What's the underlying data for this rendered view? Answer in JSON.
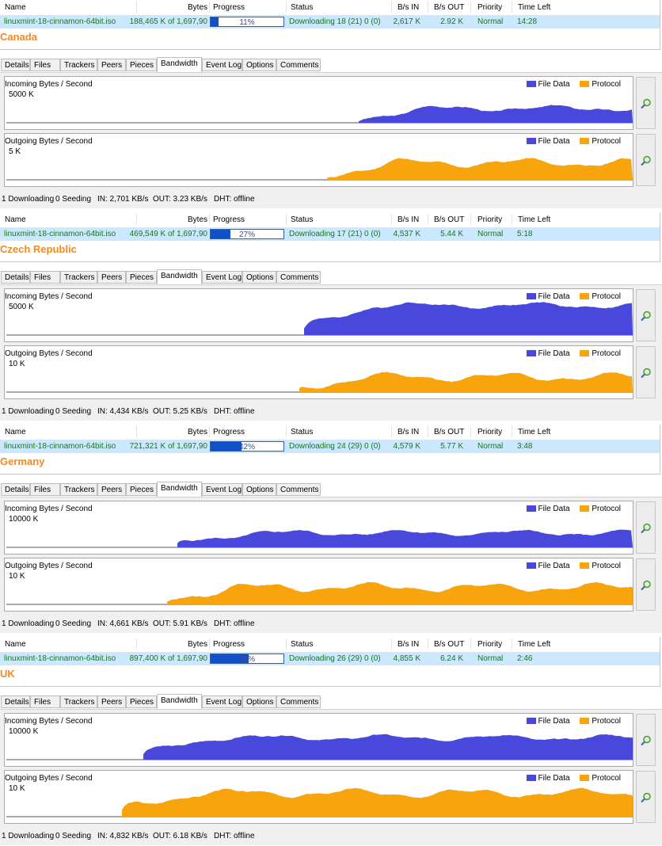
{
  "columns": {
    "name": "Name",
    "bytes": "Bytes",
    "progress": "Progress",
    "status": "Status",
    "bs_in": "B/s IN",
    "bs_out": "B/s OUT",
    "priority": "Priority",
    "time_left": "Time Left"
  },
  "tabs": [
    "Details",
    "Files",
    "Trackers",
    "Peers",
    "Pieces",
    "Bandwidth",
    "Event Log",
    "Options",
    "Comments"
  ],
  "graphs": {
    "incoming_title": "Incoming Bytes / Second",
    "outgoing_title": "Outgoing Bytes / Second",
    "legend_file": "File Data",
    "legend_protocol": "Protocol",
    "file_color": "#4848dc",
    "protocol_color": "#f8a40c"
  },
  "panels": [
    {
      "country": "Canada",
      "torrent": {
        "name": "linuxmint-18-cinnamon-64bit.iso",
        "bytes": "188,465 K of 1,697,90",
        "progress_label": "11%",
        "progress": 0.11,
        "status": "Downloading 18 (21) 0 (0)",
        "bs_in": "2,617 K",
        "bs_out": "2.92 K",
        "priority": "Normal",
        "time_left": "14:28"
      },
      "incoming_scale": "5000 K",
      "outgoing_scale": "5 K",
      "status_bar": {
        "downloading": "1 Downloading",
        "seeding": "0 Seeding",
        "in": "IN: 2,701 KB/s",
        "out": "OUT: 3.23 KB/s",
        "dht": "DHT: offline"
      }
    },
    {
      "country": "Czech Republic",
      "torrent": {
        "name": "linuxmint-18-cinnamon-64bit.iso",
        "bytes": "469,549 K of 1,697,90",
        "progress_label": "27%",
        "progress": 0.27,
        "status": "Downloading 17 (21) 0 (0)",
        "bs_in": "4,537 K",
        "bs_out": "5.44 K",
        "priority": "Normal",
        "time_left": "5:18"
      },
      "incoming_scale": "5000 K",
      "outgoing_scale": "10 K",
      "status_bar": {
        "downloading": "1 Downloading",
        "seeding": "0 Seeding",
        "in": "IN: 4,434 KB/s",
        "out": "OUT: 5.25 KB/s",
        "dht": "DHT: offline"
      }
    },
    {
      "country": "Germany",
      "torrent": {
        "name": "linuxmint-18-cinnamon-64bit.iso",
        "bytes": "721,321 K of 1,697,90",
        "progress_label": "42%",
        "progress": 0.42,
        "status": "Downloading 24 (29) 0 (0)",
        "bs_in": "4,579 K",
        "bs_out": "5.77 K",
        "priority": "Normal",
        "time_left": "3:48"
      },
      "incoming_scale": "10000 K",
      "outgoing_scale": "10 K",
      "status_bar": {
        "downloading": "1 Downloading",
        "seeding": "0 Seeding",
        "in": "IN: 4,661 KB/s",
        "out": "OUT: 5.91 KB/s",
        "dht": "DHT: offline"
      }
    },
    {
      "country": "UK",
      "torrent": {
        "name": "linuxmint-18-cinnamon-64bit.iso",
        "bytes": "897,400 K of 1,697,90",
        "progress_label": "52%",
        "progress": 0.52,
        "status": "Downloading 26 (29) 0 (0)",
        "bs_in": "4,855 K",
        "bs_out": "6.24 K",
        "priority": "Normal",
        "time_left": "2:46"
      },
      "incoming_scale": "10000 K",
      "outgoing_scale": "10 K",
      "status_bar": {
        "downloading": "1 Downloading",
        "seeding": "0 Seeding",
        "in": "IN: 4,832 KB/s",
        "out": "OUT: 6.18 KB/s",
        "dht": "DHT: offline"
      }
    }
  ]
}
